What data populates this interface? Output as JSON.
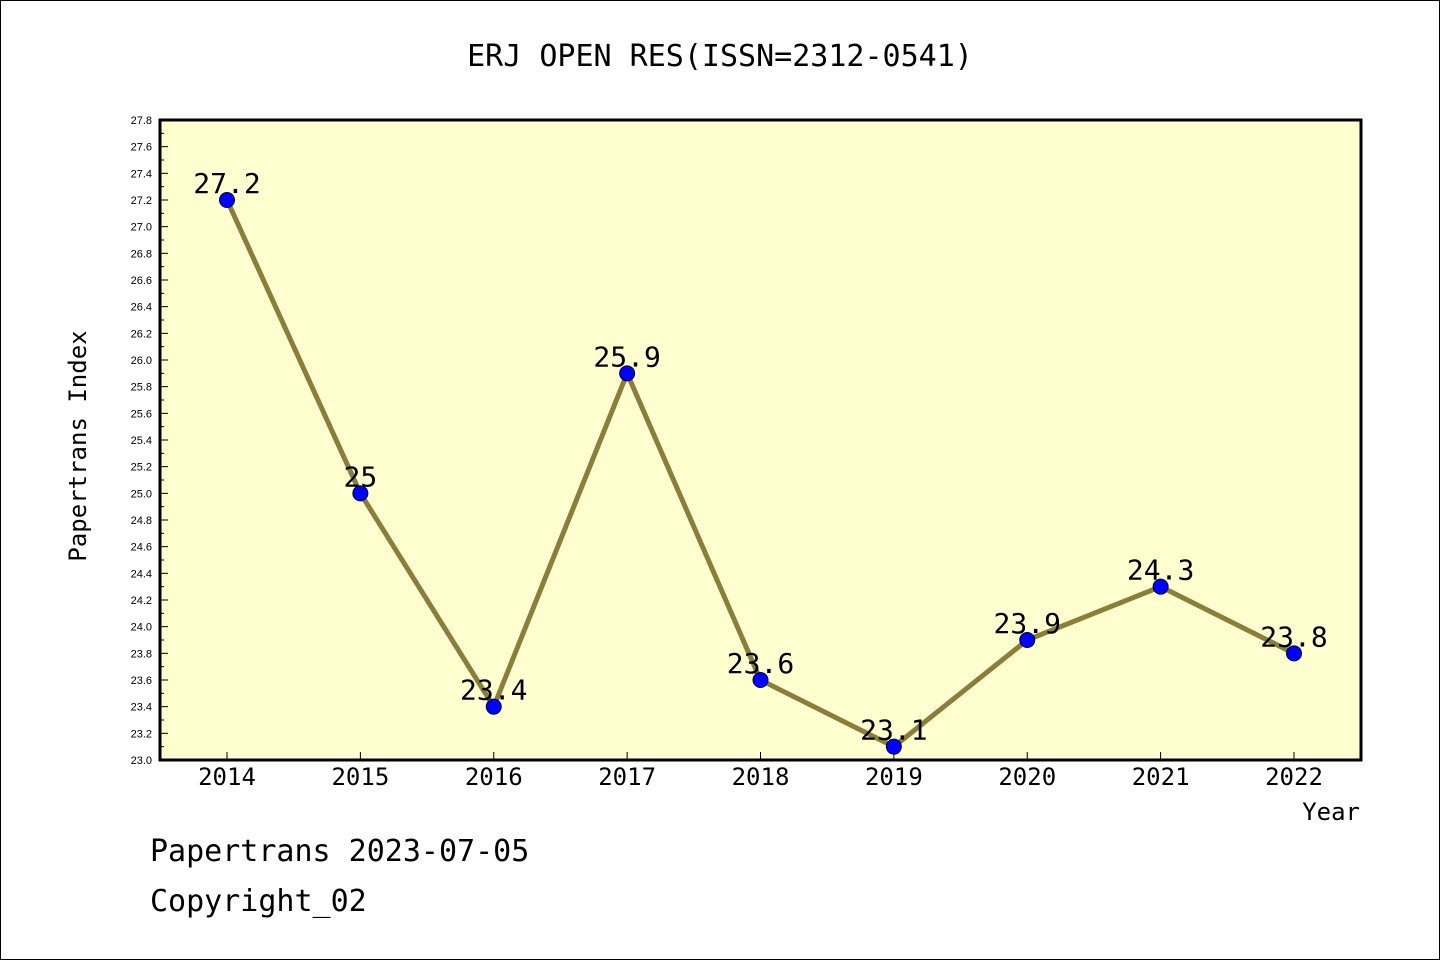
{
  "chart_data": {
    "type": "line",
    "title": "ERJ OPEN RES(ISSN=2312-0541)",
    "xlabel": "Year",
    "ylabel": "Papertrans Index",
    "categories": [
      "2014",
      "2015",
      "2016",
      "2017",
      "2018",
      "2019",
      "2020",
      "2021",
      "2022"
    ],
    "values": [
      27.2,
      25,
      23.4,
      25.9,
      23.6,
      23.1,
      23.9,
      24.3,
      23.8
    ],
    "value_labels": [
      "27.2",
      "25",
      "23.4",
      "25.9",
      "23.6",
      "23.1",
      "23.9",
      "24.3",
      "23.8"
    ],
    "ylim": [
      23.0,
      27.8
    ],
    "yticks": [
      "23.0",
      "23.2",
      "23.4",
      "23.6",
      "23.8",
      "24.0",
      "24.2",
      "24.4",
      "24.6",
      "24.8",
      "25.0",
      "25.2",
      "25.4",
      "25.6",
      "25.8",
      "26.0",
      "26.2",
      "26.4",
      "26.6",
      "26.8",
      "27.0",
      "27.2",
      "27.4",
      "27.6",
      "27.8"
    ],
    "grid": false,
    "colors": {
      "plot_background": "#ffffd0",
      "line": "#8b7d3a",
      "marker": "#0000ff"
    }
  },
  "footer": {
    "line1": "Papertrans 2023-07-05",
    "line2": "Copyright_02"
  }
}
